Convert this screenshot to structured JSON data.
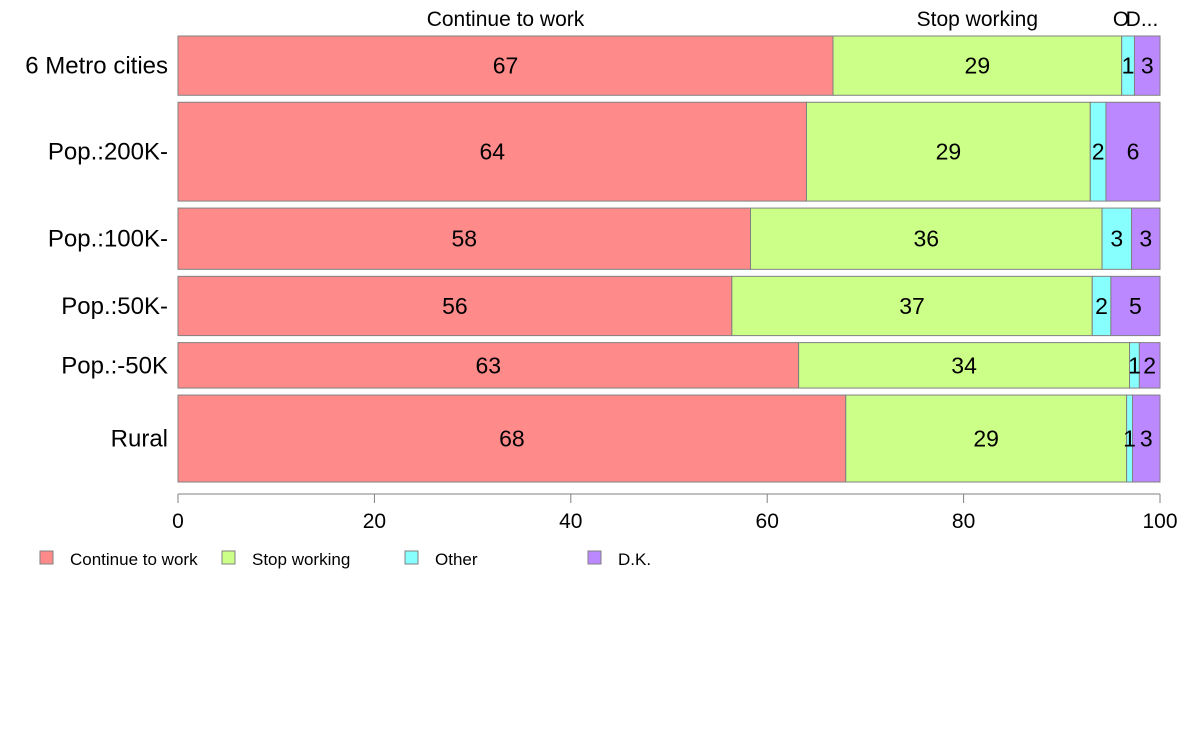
{
  "chart_data": {
    "type": "bar",
    "orientation": "horizontal",
    "stacked": true,
    "categories": [
      "6 Metro cities",
      "Pop.:200K-",
      "Pop.:100K-",
      "Pop.:50K-",
      "Pop.:-50K",
      "Rural"
    ],
    "category_weights": [
      0.6,
      1.0,
      0.62,
      0.6,
      0.46,
      0.88
    ],
    "series": [
      {
        "name": "Continue to work",
        "color": "#FF8A8A",
        "values": [
          66.7,
          64.0,
          58.3,
          56.4,
          63.2,
          68.0
        ],
        "labels": [
          "67",
          "64",
          "58",
          "56",
          "63",
          "68"
        ]
      },
      {
        "name": "Stop working",
        "color": "#CCFF88",
        "values": [
          29.4,
          28.9,
          35.8,
          36.7,
          33.7,
          28.6
        ],
        "labels": [
          "29",
          "29",
          "36",
          "37",
          "34",
          "29"
        ]
      },
      {
        "name": "Other",
        "color": "#88FFFF",
        "values": [
          1.3,
          1.6,
          3.0,
          1.9,
          1.0,
          0.6
        ],
        "labels": [
          "1",
          "2",
          "3",
          "2",
          "1",
          "1"
        ]
      },
      {
        "name": "D.K.",
        "color": "#BB88FF",
        "values": [
          2.6,
          5.5,
          2.9,
          5.0,
          2.1,
          2.8
        ],
        "labels": [
          "3",
          "6",
          "3",
          "5",
          "2",
          "3"
        ]
      }
    ],
    "top_labels": [
      "Continue to work",
      "Stop working",
      "O",
      "D..."
    ],
    "xlim": [
      0,
      100
    ],
    "xticks": [
      "0",
      "20",
      "40",
      "60",
      "80",
      "100"
    ],
    "grid": false,
    "legend_position": "bottom-left"
  }
}
